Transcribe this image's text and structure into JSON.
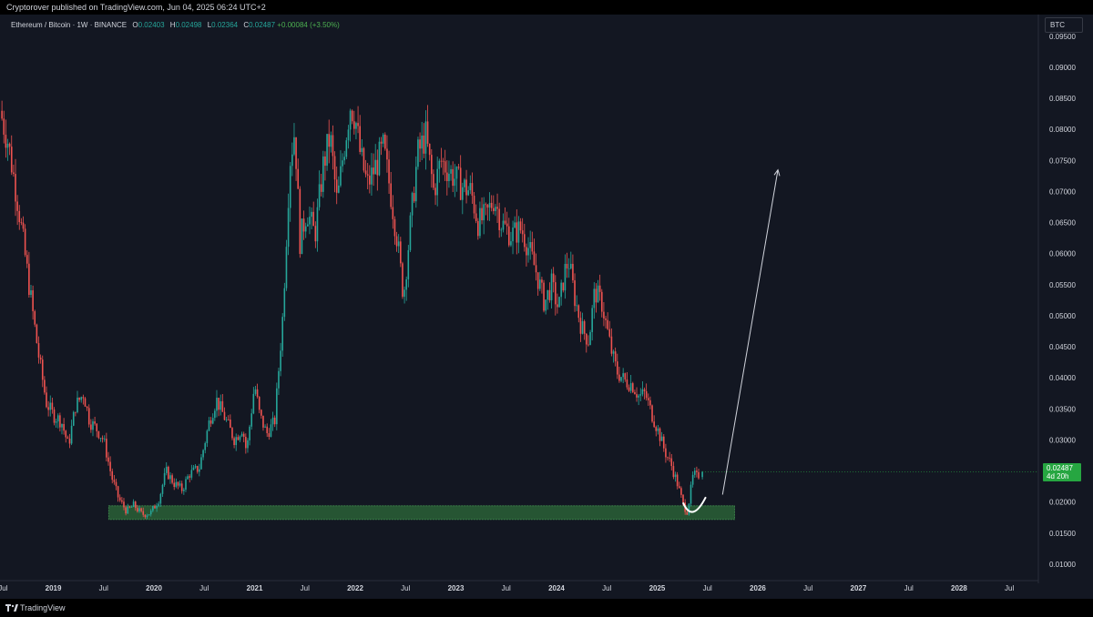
{
  "header": {
    "published": "Cryptorover published on TradingView.com, Jun 04, 2025 06:24 UTC+2"
  },
  "legend": {
    "symbol": "Ethereum / Bitcoin · 1W · BINANCE",
    "open_label": "O",
    "open": "0.02403",
    "high_label": "H",
    "high": "0.02498",
    "low_label": "L",
    "low": "0.02364",
    "close_label": "C",
    "close": "0.02487",
    "change": "+0.00084 (+3.50%)"
  },
  "currency_button": "BTC",
  "last_price": {
    "price": "0.02487",
    "countdown": "4d 20h"
  },
  "footer": {
    "brand": "TradingView"
  },
  "colors": {
    "up": "#26a69a",
    "down": "#ef5350",
    "background": "#131722",
    "support_zone": "#2e6b3a",
    "last_price": "#26a641"
  },
  "chart_data": {
    "type": "candlestick",
    "y_ticks": [
      "0.09500",
      "0.09000",
      "0.08500",
      "0.08000",
      "0.07500",
      "0.07000",
      "0.06500",
      "0.06000",
      "0.05500",
      "0.05000",
      "0.04500",
      "0.04000",
      "0.03500",
      "0.03000",
      "0.02500",
      "0.02000",
      "0.01500",
      "0.01000"
    ],
    "x_ticks": [
      {
        "label": "Jul",
        "t": 2018.5,
        "year": false
      },
      {
        "label": "2019",
        "t": 2019.0,
        "year": true
      },
      {
        "label": "Jul",
        "t": 2019.5,
        "year": false
      },
      {
        "label": "2020",
        "t": 2020.0,
        "year": true
      },
      {
        "label": "Jul",
        "t": 2020.5,
        "year": false
      },
      {
        "label": "2021",
        "t": 2021.0,
        "year": true
      },
      {
        "label": "Jul",
        "t": 2021.5,
        "year": false
      },
      {
        "label": "2022",
        "t": 2022.0,
        "year": true
      },
      {
        "label": "Jul",
        "t": 2022.5,
        "year": false
      },
      {
        "label": "2023",
        "t": 2023.0,
        "year": true
      },
      {
        "label": "Jul",
        "t": 2023.5,
        "year": false
      },
      {
        "label": "2024",
        "t": 2024.0,
        "year": true
      },
      {
        "label": "Jul",
        "t": 2024.5,
        "year": false
      },
      {
        "label": "2025",
        "t": 2025.0,
        "year": true
      },
      {
        "label": "Jul",
        "t": 2025.5,
        "year": false
      },
      {
        "label": "2026",
        "t": 2026.0,
        "year": true
      },
      {
        "label": "Jul",
        "t": 2026.5,
        "year": false
      },
      {
        "label": "2027",
        "t": 2027.0,
        "year": true
      },
      {
        "label": "Jul",
        "t": 2027.5,
        "year": false
      },
      {
        "label": "2028",
        "t": 2028.0,
        "year": true
      },
      {
        "label": "Jul",
        "t": 2028.5,
        "year": false
      }
    ],
    "x_range": [
      2018.47,
      2028.77
    ],
    "y_range": [
      0.0075,
      0.0985
    ],
    "price_path": [
      [
        2018.47,
        0.083
      ],
      [
        2018.55,
        0.078
      ],
      [
        2018.65,
        0.068
      ],
      [
        2018.75,
        0.056
      ],
      [
        2018.85,
        0.044
      ],
      [
        2018.93,
        0.036
      ],
      [
        2019.0,
        0.034
      ],
      [
        2019.08,
        0.033
      ],
      [
        2019.15,
        0.029
      ],
      [
        2019.22,
        0.0355
      ],
      [
        2019.3,
        0.0375
      ],
      [
        2019.36,
        0.033
      ],
      [
        2019.42,
        0.032
      ],
      [
        2019.5,
        0.03
      ],
      [
        2019.58,
        0.024
      ],
      [
        2019.65,
        0.0205
      ],
      [
        2019.73,
        0.0185
      ],
      [
        2019.8,
        0.0195
      ],
      [
        2019.88,
        0.018
      ],
      [
        2019.97,
        0.0183
      ],
      [
        2020.05,
        0.0205
      ],
      [
        2020.12,
        0.025
      ],
      [
        2020.2,
        0.023
      ],
      [
        2020.28,
        0.022
      ],
      [
        2020.35,
        0.0245
      ],
      [
        2020.45,
        0.0255
      ],
      [
        2020.55,
        0.033
      ],
      [
        2020.62,
        0.0365
      ],
      [
        2020.72,
        0.033
      ],
      [
        2020.8,
        0.03
      ],
      [
        2020.88,
        0.032
      ],
      [
        2020.92,
        0.028
      ],
      [
        2021.0,
        0.039
      ],
      [
        2021.05,
        0.034
      ],
      [
        2021.12,
        0.031
      ],
      [
        2021.2,
        0.033
      ],
      [
        2021.28,
        0.05
      ],
      [
        2021.35,
        0.075
      ],
      [
        2021.4,
        0.08
      ],
      [
        2021.45,
        0.062
      ],
      [
        2021.52,
        0.067
      ],
      [
        2021.6,
        0.063
      ],
      [
        2021.68,
        0.074
      ],
      [
        2021.75,
        0.079
      ],
      [
        2021.82,
        0.068
      ],
      [
        2021.88,
        0.076
      ],
      [
        2021.95,
        0.084
      ],
      [
        2022.0,
        0.082
      ],
      [
        2022.05,
        0.076
      ],
      [
        2022.12,
        0.071
      ],
      [
        2022.2,
        0.074
      ],
      [
        2022.28,
        0.077
      ],
      [
        2022.35,
        0.07
      ],
      [
        2022.42,
        0.062
      ],
      [
        2022.48,
        0.053
      ],
      [
        2022.55,
        0.065
      ],
      [
        2022.62,
        0.076
      ],
      [
        2022.7,
        0.079
      ],
      [
        2022.78,
        0.07
      ],
      [
        2022.85,
        0.075
      ],
      [
        2022.95,
        0.073
      ],
      [
        2023.05,
        0.071
      ],
      [
        2023.15,
        0.07
      ],
      [
        2023.22,
        0.065
      ],
      [
        2023.3,
        0.066
      ],
      [
        2023.38,
        0.069
      ],
      [
        2023.45,
        0.065
      ],
      [
        2023.55,
        0.063
      ],
      [
        2023.65,
        0.064
      ],
      [
        2023.72,
        0.061
      ],
      [
        2023.8,
        0.057
      ],
      [
        2023.88,
        0.052
      ],
      [
        2023.95,
        0.055
      ],
      [
        2024.02,
        0.051
      ],
      [
        2024.08,
        0.057
      ],
      [
        2024.12,
        0.059
      ],
      [
        2024.18,
        0.053
      ],
      [
        2024.25,
        0.048
      ],
      [
        2024.32,
        0.046
      ],
      [
        2024.38,
        0.054
      ],
      [
        2024.45,
        0.052
      ],
      [
        2024.5,
        0.048
      ],
      [
        2024.55,
        0.044
      ],
      [
        2024.6,
        0.041
      ],
      [
        2024.68,
        0.0395
      ],
      [
        2024.75,
        0.039
      ],
      [
        2024.82,
        0.037
      ],
      [
        2024.88,
        0.0375
      ],
      [
        2024.95,
        0.034
      ],
      [
        2025.02,
        0.031
      ],
      [
        2025.08,
        0.028
      ],
      [
        2025.14,
        0.026
      ],
      [
        2025.2,
        0.023
      ],
      [
        2025.26,
        0.0195
      ],
      [
        2025.3,
        0.0185
      ],
      [
        2025.33,
        0.0215
      ],
      [
        2025.36,
        0.0245
      ],
      [
        2025.4,
        0.024
      ],
      [
        2025.43,
        0.0249
      ]
    ],
    "support_zone": {
      "t_start": 2019.55,
      "t_end": 2025.77,
      "low": 0.0172,
      "high": 0.0194
    },
    "arrow": {
      "from": [
        2025.65,
        0.0212
      ],
      "to": [
        2026.2,
        0.0735
      ]
    },
    "curve": {
      "from": [
        2025.26,
        0.0198
      ],
      "mid": [
        2025.35,
        0.0175
      ],
      "to": [
        2025.48,
        0.0207
      ]
    },
    "last_price": 0.02487,
    "legend_placement": "top-left"
  }
}
